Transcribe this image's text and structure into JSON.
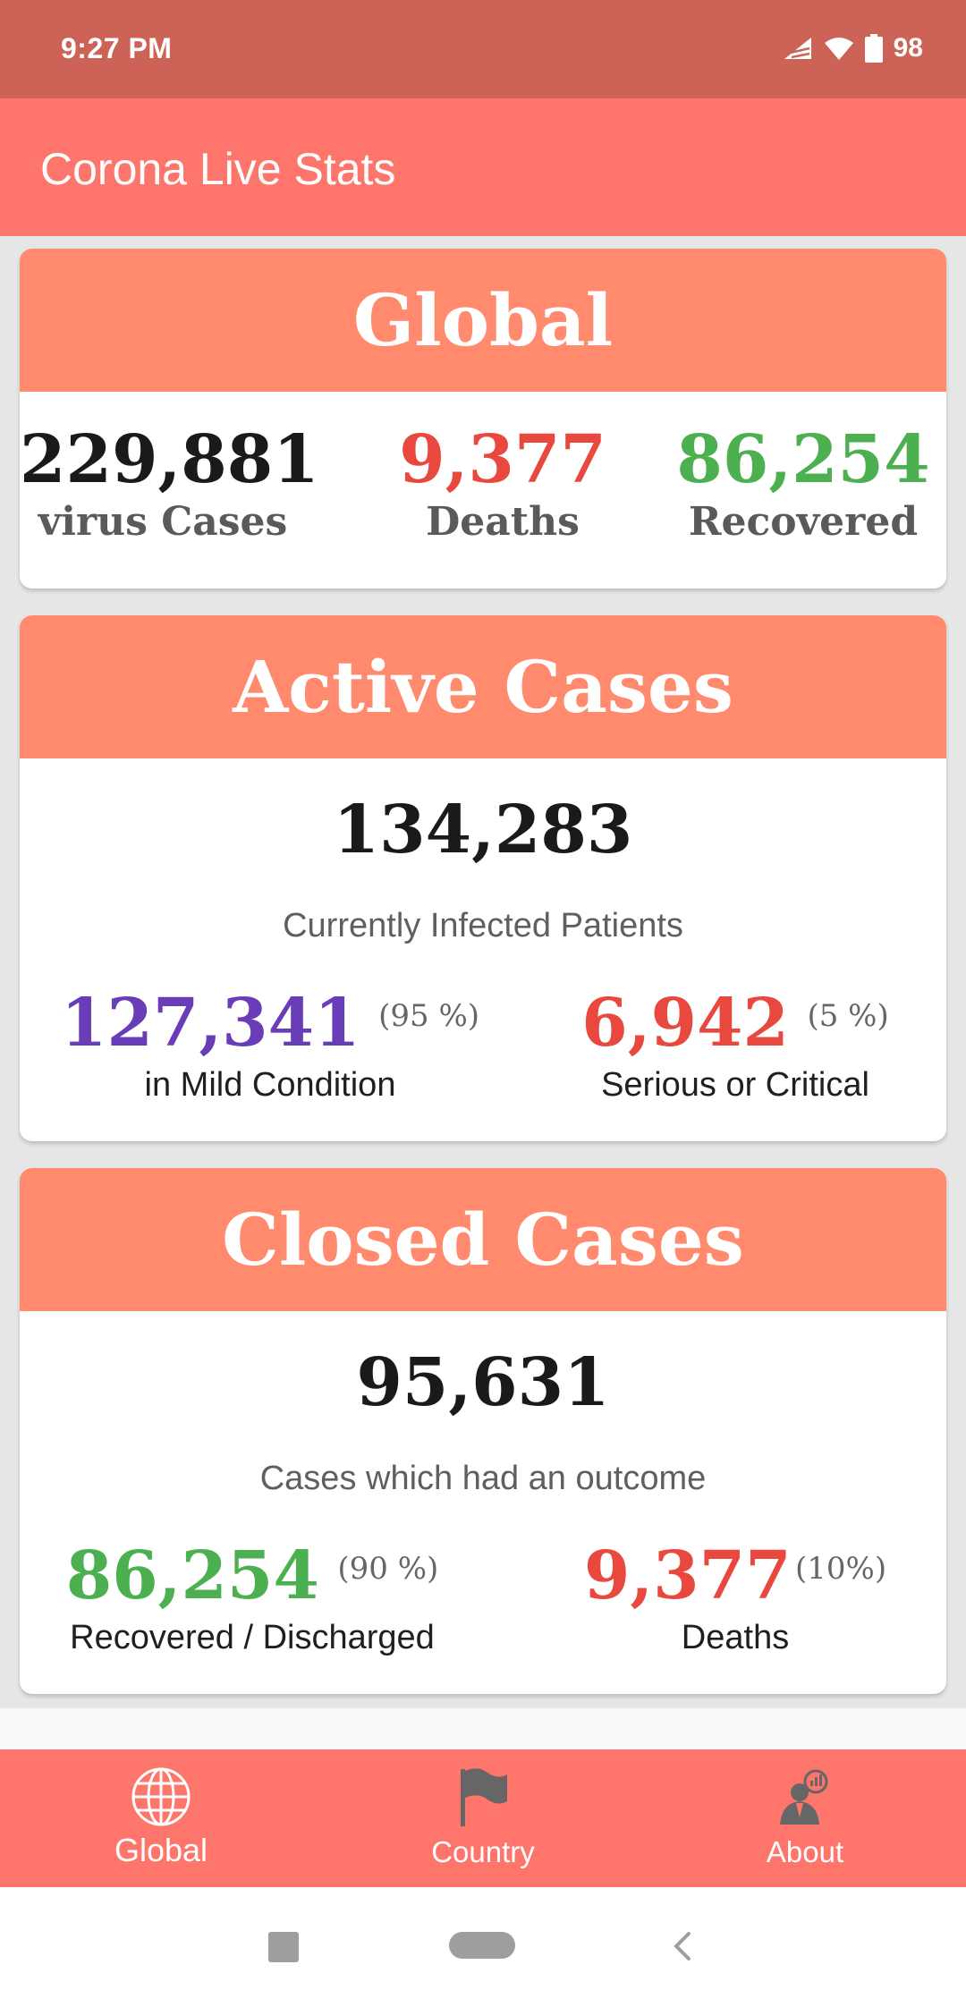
{
  "status_bar": {
    "time": "9:27 PM",
    "battery": "98"
  },
  "app_bar": {
    "title": "Corona Live Stats"
  },
  "global": {
    "header": "Global",
    "cases": {
      "value": "229,881",
      "label": "virus Cases",
      "color": "#1a1a1a"
    },
    "deaths": {
      "value": "9,377",
      "label": "Deaths",
      "color": "#e8483e"
    },
    "recovered": {
      "value": "86,254",
      "label": "Recovered",
      "color": "#4caf50"
    }
  },
  "active": {
    "header": "Active Cases",
    "total": "134,283",
    "caption": "Currently Infected Patients",
    "mild": {
      "value": "127,341",
      "pct": "(95 %)",
      "label": "in Mild Condition",
      "color": "#6a3db8"
    },
    "serious": {
      "value": "6,942",
      "pct": "(5 %)",
      "label": "Serious or Critical",
      "color": "#e8483e"
    }
  },
  "closed": {
    "header": "Closed Cases",
    "total": "95,631",
    "caption": "Cases which had an outcome",
    "recovered": {
      "value": "86,254",
      "pct": "(90 %)",
      "label": "Recovered / Discharged",
      "color": "#4caf50"
    },
    "deaths": {
      "value": "9,377",
      "pct": "(10%)",
      "label": "Deaths",
      "color": "#e8483e"
    }
  },
  "bottom_nav": {
    "items": [
      {
        "label": "Global",
        "icon": "globe-icon",
        "active": true
      },
      {
        "label": "Country",
        "icon": "flag-icon",
        "active": false
      },
      {
        "label": "About",
        "icon": "person-chart-icon",
        "active": false
      }
    ]
  },
  "colors": {
    "status_bar": "#cd6256",
    "app_bar": "#fe766b",
    "card_header": "#ff8a6d"
  }
}
